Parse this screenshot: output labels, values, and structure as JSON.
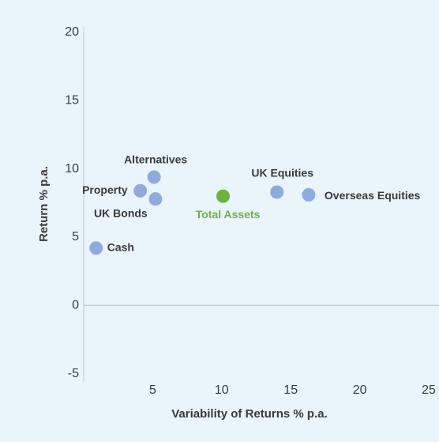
{
  "chart_data": {
    "type": "scatter",
    "xlabel": "Variability of Returns % p.a.",
    "ylabel": "Return % p.a.",
    "labels": [
      "Cash",
      "Property",
      "Alternatives",
      "UK Bonds",
      "Total Assets",
      "UK Equities",
      "Overseas Equities"
    ],
    "x": [
      0.9,
      4.1,
      5.1,
      5.2,
      10.1,
      14.0,
      16.3
    ],
    "y": [
      4.2,
      8.4,
      9.4,
      7.8,
      8.0,
      8.3,
      8.1
    ],
    "colors": [
      "#8eabdb",
      "#8eabdb",
      "#8eabdb",
      "#8eabdb",
      "#6cb33f",
      "#8eabdb",
      "#8eabdb"
    ],
    "xlim": [
      0,
      25
    ],
    "ylim": [
      -5.6,
      20.4
    ],
    "xticks": [
      5,
      10,
      15,
      20,
      25
    ],
    "yticks": [
      -5,
      0,
      5,
      10,
      15,
      20
    ]
  }
}
